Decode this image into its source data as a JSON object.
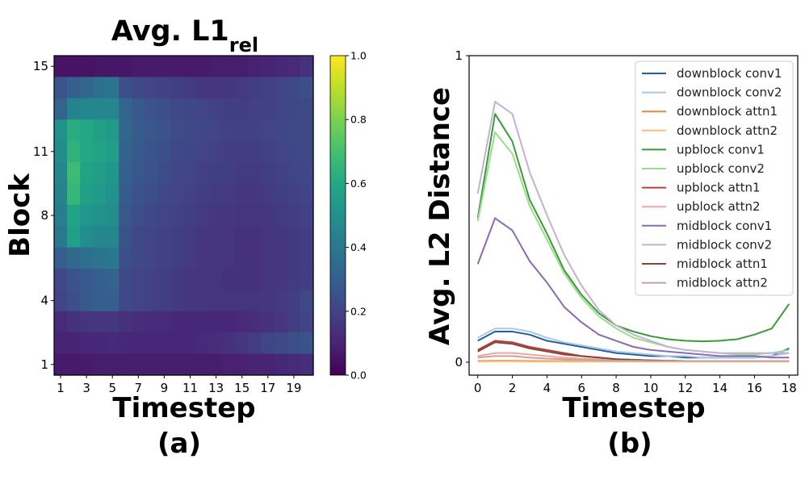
{
  "chart_data": [
    {
      "type": "heatmap",
      "panel_label": "(a)",
      "title_main": "Avg. L1",
      "title_sub": "rel",
      "xlabel": "Timestep",
      "ylabel": "Block",
      "x_ticks": [
        "1",
        "3",
        "5",
        "7",
        "9",
        "11",
        "13",
        "15",
        "17",
        "19"
      ],
      "y_ticks": [
        "1",
        "4",
        "8",
        "11",
        "15"
      ],
      "x_values": [
        1,
        2,
        3,
        4,
        5,
        6,
        7,
        8,
        9,
        10,
        11,
        12,
        13,
        14,
        15,
        16,
        17,
        18,
        19,
        20
      ],
      "y_values": [
        15,
        14,
        13,
        12,
        11,
        10,
        9,
        8,
        7,
        6,
        5,
        4,
        3,
        2,
        1
      ],
      "colorbar": {
        "min": 0.0,
        "max": 1.0,
        "ticks": [
          "0.0",
          "0.2",
          "0.4",
          "0.6",
          "0.8",
          "1.0"
        ]
      },
      "colormap": "viridis",
      "values": [
        [
          0.05,
          0.05,
          0.05,
          0.06,
          0.06,
          0.06,
          0.07,
          0.07,
          0.07,
          0.07,
          0.07,
          0.07,
          0.08,
          0.08,
          0.08,
          0.09,
          0.1,
          0.11,
          0.12,
          0.14
        ],
        [
          0.25,
          0.3,
          0.33,
          0.36,
          0.38,
          0.24,
          0.22,
          0.2,
          0.19,
          0.18,
          0.17,
          0.16,
          0.16,
          0.16,
          0.17,
          0.18,
          0.19,
          0.2,
          0.22,
          0.24
        ],
        [
          0.32,
          0.44,
          0.46,
          0.46,
          0.46,
          0.32,
          0.28,
          0.26,
          0.24,
          0.22,
          0.21,
          0.2,
          0.19,
          0.18,
          0.18,
          0.19,
          0.19,
          0.2,
          0.21,
          0.22
        ],
        [
          0.5,
          0.62,
          0.6,
          0.56,
          0.54,
          0.33,
          0.29,
          0.27,
          0.25,
          0.23,
          0.22,
          0.21,
          0.2,
          0.19,
          0.19,
          0.19,
          0.2,
          0.21,
          0.22,
          0.22
        ],
        [
          0.48,
          0.64,
          0.6,
          0.58,
          0.55,
          0.31,
          0.28,
          0.26,
          0.24,
          0.22,
          0.21,
          0.2,
          0.19,
          0.18,
          0.18,
          0.18,
          0.19,
          0.2,
          0.21,
          0.22
        ],
        [
          0.46,
          0.68,
          0.58,
          0.55,
          0.52,
          0.3,
          0.27,
          0.25,
          0.23,
          0.21,
          0.2,
          0.19,
          0.18,
          0.18,
          0.17,
          0.17,
          0.18,
          0.19,
          0.2,
          0.21
        ],
        [
          0.44,
          0.66,
          0.56,
          0.54,
          0.5,
          0.29,
          0.26,
          0.24,
          0.22,
          0.2,
          0.19,
          0.18,
          0.17,
          0.17,
          0.16,
          0.16,
          0.17,
          0.18,
          0.19,
          0.2
        ],
        [
          0.42,
          0.58,
          0.52,
          0.5,
          0.48,
          0.27,
          0.24,
          0.22,
          0.2,
          0.19,
          0.18,
          0.17,
          0.16,
          0.16,
          0.15,
          0.15,
          0.16,
          0.17,
          0.18,
          0.19
        ],
        [
          0.4,
          0.56,
          0.48,
          0.46,
          0.46,
          0.25,
          0.22,
          0.2,
          0.19,
          0.18,
          0.17,
          0.16,
          0.15,
          0.15,
          0.14,
          0.14,
          0.15,
          0.16,
          0.17,
          0.18
        ],
        [
          0.3,
          0.34,
          0.36,
          0.38,
          0.4,
          0.24,
          0.22,
          0.2,
          0.19,
          0.18,
          0.17,
          0.16,
          0.15,
          0.15,
          0.14,
          0.14,
          0.15,
          0.16,
          0.17,
          0.18
        ],
        [
          0.22,
          0.26,
          0.28,
          0.3,
          0.32,
          0.22,
          0.2,
          0.19,
          0.18,
          0.17,
          0.16,
          0.15,
          0.15,
          0.14,
          0.14,
          0.14,
          0.15,
          0.16,
          0.17,
          0.18
        ],
        [
          0.2,
          0.24,
          0.28,
          0.3,
          0.3,
          0.22,
          0.2,
          0.19,
          0.18,
          0.17,
          0.16,
          0.16,
          0.15,
          0.15,
          0.15,
          0.15,
          0.16,
          0.17,
          0.18,
          0.22
        ],
        [
          0.12,
          0.14,
          0.15,
          0.16,
          0.16,
          0.14,
          0.13,
          0.12,
          0.12,
          0.11,
          0.11,
          0.11,
          0.11,
          0.11,
          0.12,
          0.13,
          0.14,
          0.16,
          0.18,
          0.2
        ],
        [
          0.1,
          0.1,
          0.11,
          0.11,
          0.12,
          0.11,
          0.11,
          0.11,
          0.11,
          0.11,
          0.11,
          0.12,
          0.13,
          0.14,
          0.16,
          0.18,
          0.2,
          0.22,
          0.24,
          0.26
        ],
        [
          0.07,
          0.07,
          0.07,
          0.08,
          0.08,
          0.08,
          0.08,
          0.08,
          0.08,
          0.08,
          0.08,
          0.08,
          0.08,
          0.09,
          0.09,
          0.1,
          0.1,
          0.11,
          0.12,
          0.13
        ]
      ]
    },
    {
      "type": "line",
      "panel_label": "(b)",
      "xlabel": "Timestep",
      "ylabel": "Avg. L2 Distance",
      "x": [
        0,
        1,
        2,
        3,
        4,
        5,
        6,
        7,
        8,
        9,
        10,
        11,
        12,
        13,
        14,
        15,
        16,
        17,
        18
      ],
      "x_ticks": [
        "0",
        "2",
        "4",
        "6",
        "8",
        "10",
        "12",
        "14",
        "16",
        "18"
      ],
      "y_ticks": [
        "0",
        "1"
      ],
      "ylim": [
        0,
        1
      ],
      "xlim": [
        -0.5,
        18.5
      ],
      "legend_position": "top-right",
      "series": [
        {
          "name": "downblock conv1",
          "color": "#1f5f96",
          "values": [
            0.07,
            0.1,
            0.1,
            0.09,
            0.07,
            0.06,
            0.05,
            0.04,
            0.03,
            0.025,
            0.02,
            0.02,
            0.015,
            0.015,
            0.015,
            0.015,
            0.015,
            0.02,
            0.045
          ]
        },
        {
          "name": "downblock conv2",
          "color": "#aec7e8",
          "values": [
            0.08,
            0.11,
            0.11,
            0.1,
            0.08,
            0.065,
            0.055,
            0.045,
            0.035,
            0.03,
            0.025,
            0.02,
            0.02,
            0.015,
            0.015,
            0.015,
            0.015,
            0.02,
            0.03
          ]
        },
        {
          "name": "downblock attn1",
          "color": "#e6873a",
          "values": [
            0.004,
            0.005,
            0.005,
            0.004,
            0.004,
            0.004,
            0.003,
            0.003,
            0.003,
            0.003,
            0.003,
            0.003,
            0.003,
            0.003,
            0.003,
            0.003,
            0.003,
            0.003,
            0.003
          ]
        },
        {
          "name": "downblock attn2",
          "color": "#ffbb78",
          "values": [
            0.002,
            0.003,
            0.003,
            0.002,
            0.002,
            0.002,
            0.002,
            0.002,
            0.002,
            0.002,
            0.002,
            0.002,
            0.002,
            0.002,
            0.002,
            0.002,
            0.002,
            0.002,
            0.002
          ]
        },
        {
          "name": "upblock conv1",
          "color": "#3a9a3a",
          "values": [
            0.47,
            0.81,
            0.72,
            0.53,
            0.42,
            0.3,
            0.22,
            0.16,
            0.12,
            0.1,
            0.085,
            0.075,
            0.07,
            0.068,
            0.07,
            0.075,
            0.09,
            0.11,
            0.19
          ]
        },
        {
          "name": "upblock conv2",
          "color": "#98df8a",
          "values": [
            0.46,
            0.75,
            0.68,
            0.51,
            0.4,
            0.29,
            0.21,
            0.15,
            0.11,
            0.08,
            0.065,
            0.05,
            0.04,
            0.035,
            0.03,
            0.025,
            0.025,
            0.03,
            0.04
          ]
        },
        {
          "name": "upblock attn1",
          "color": "#c03d3a",
          "values": [
            0.04,
            0.07,
            0.065,
            0.05,
            0.04,
            0.03,
            0.02,
            0.015,
            0.01,
            0.008,
            0.006,
            0.005,
            0.004,
            0.004,
            0.004,
            0.004,
            0.004,
            0.004,
            0.004
          ]
        },
        {
          "name": "upblock attn2",
          "color": "#f2a6a0",
          "values": [
            0.02,
            0.03,
            0.03,
            0.025,
            0.02,
            0.015,
            0.012,
            0.01,
            0.008,
            0.006,
            0.005,
            0.005,
            0.004,
            0.004,
            0.004,
            0.004,
            0.004,
            0.004,
            0.004
          ]
        },
        {
          "name": "midblock conv1",
          "color": "#8a6ab0",
          "values": [
            0.32,
            0.47,
            0.43,
            0.33,
            0.26,
            0.18,
            0.13,
            0.09,
            0.07,
            0.05,
            0.04,
            0.035,
            0.03,
            0.025,
            0.02,
            0.02,
            0.02,
            0.015,
            0.015
          ]
        },
        {
          "name": "midblock conv2",
          "color": "#c5b0d5",
          "values": [
            0.55,
            0.85,
            0.81,
            0.62,
            0.48,
            0.35,
            0.25,
            0.17,
            0.12,
            0.09,
            0.07,
            0.05,
            0.04,
            0.035,
            0.03,
            0.03,
            0.03,
            0.03,
            0.03
          ]
        },
        {
          "name": "midblock attn1",
          "color": "#7b4a3e",
          "values": [
            0.035,
            0.065,
            0.06,
            0.045,
            0.035,
            0.025,
            0.02,
            0.015,
            0.01,
            0.008,
            0.006,
            0.005,
            0.004,
            0.004,
            0.004,
            0.004,
            0.004,
            0.004,
            0.004
          ]
        },
        {
          "name": "midblock attn2",
          "color": "#c4a49c",
          "values": [
            0.015,
            0.02,
            0.02,
            0.015,
            0.012,
            0.01,
            0.008,
            0.006,
            0.005,
            0.005,
            0.004,
            0.004,
            0.004,
            0.004,
            0.004,
            0.004,
            0.004,
            0.004,
            0.004
          ]
        }
      ]
    }
  ]
}
